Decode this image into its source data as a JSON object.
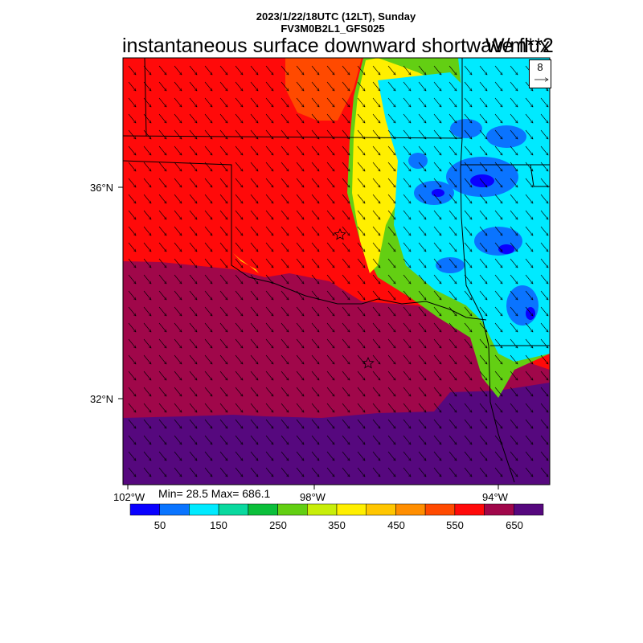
{
  "header": {
    "date_line": "2023/1/22/18UTC (12LT), Sunday",
    "model_line": "FV3M0B2L1_GFS025",
    "title": "instantaneous surface downward shortwave flux",
    "units": "W/m**2"
  },
  "map": {
    "lat_labels": [
      "36°N",
      "32°N"
    ],
    "lon_labels": [
      "102°W",
      "98°W",
      "94°W"
    ],
    "wind_reference_value": "8",
    "station_markers": 2
  },
  "stats": {
    "text": "Min= 28.5 Max= 686.1"
  },
  "colorbar": {
    "colors": [
      "#0a00ff",
      "#0a74ff",
      "#00eaff",
      "#0ad99f",
      "#0bbf3b",
      "#63cf13",
      "#c8ee0a",
      "#ffef00",
      "#ffc600",
      "#ff8e00",
      "#ff4a00",
      "#ff0a0a",
      "#a0074a",
      "#56087e"
    ],
    "labels": [
      "50",
      "150",
      "250",
      "350",
      "450",
      "550",
      "650"
    ]
  }
}
